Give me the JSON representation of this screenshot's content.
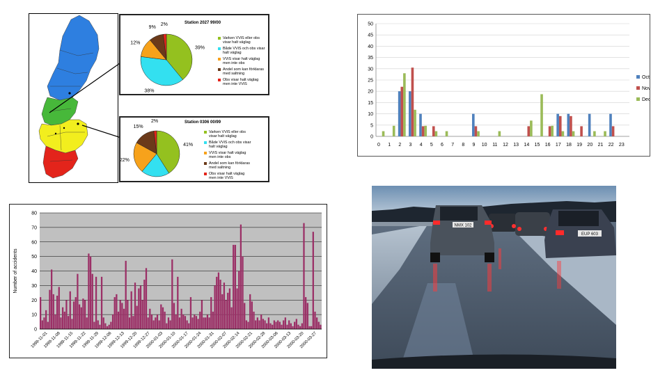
{
  "colors": {
    "sweden_north": "#2e7fe0",
    "sweden_middle": "#47b83a",
    "sweden_south_yellow": "#f2ee1e",
    "sweden_south_red": "#e3241b",
    "pie_green": "#94c11f",
    "pie_cyan": "#33e0f0",
    "pie_orange": "#f7a21b",
    "pie_brown": "#6b3a1a",
    "pie_red": "#e3241b",
    "bar_oct": "#4f81bd",
    "bar_nov": "#c0504d",
    "bar_dec": "#9bbb59",
    "accidents_bar": "#9b2f66",
    "plot_bg_grey": "#c0c0c0"
  },
  "map_panel": {
    "pie1": {
      "title": "Station 2027 99/00",
      "legend": [
        {
          "label": "Varken VViS eller obs visar halt väglag",
          "color_key": "pie_green"
        },
        {
          "label": "Både VViS och obs visar halt väglag",
          "color_key": "pie_cyan"
        },
        {
          "label": "VViS visar halt väglag men inte obs",
          "color_key": "pie_orange"
        },
        {
          "label": "Andel som kan förklaras med saltning",
          "color_key": "pie_brown"
        },
        {
          "label": "Obs visar halt väglag men inte VViS",
          "color_key": "pie_red"
        }
      ],
      "chart_data": {
        "type": "pie",
        "slices": [
          {
            "label": "Varken VViS eller obs visar halt väglag",
            "value": 39,
            "display": "39%",
            "color_key": "pie_green"
          },
          {
            "label": "Både VViS och obs visar halt väglag",
            "value": 38,
            "display": "38%",
            "color_key": "pie_cyan"
          },
          {
            "label": "VViS visar halt väglag men inte obs",
            "value": 12,
            "display": "12%",
            "color_key": "pie_orange"
          },
          {
            "label": "Andel som kan förklaras med saltning",
            "value": 9,
            "display": "9%",
            "color_key": "pie_brown"
          },
          {
            "label": "Obs visar halt väglag men inte VViS",
            "value": 2,
            "display": "2%",
            "color_key": "pie_red"
          }
        ]
      }
    },
    "pie2": {
      "title": "Station 0306 00/99",
      "legend": [
        {
          "label": "Varken VViS eller obs visar halt väglag",
          "color_key": "pie_green"
        },
        {
          "label": "Både VViS och obs visar halt väglag",
          "color_key": "pie_cyan"
        },
        {
          "label": "VViS visar halt väglag men inte obs",
          "color_key": "pie_orange"
        },
        {
          "label": "Andel som kan förklaras med saltning",
          "color_key": "pie_brown"
        },
        {
          "label": "Obs visar halt väglag men inte VViS",
          "color_key": "pie_red"
        }
      ],
      "chart_data": {
        "type": "pie",
        "slices": [
          {
            "label": "Varken VViS eller obs visar halt väglag",
            "value": 41,
            "display": "41%",
            "color_key": "pie_green"
          },
          {
            "label": "Både VViS och obs visar halt väglag",
            "value": 20,
            "display": "20%",
            "color_key": "pie_cyan"
          },
          {
            "label": "VViS visar halt väglag men inte obs",
            "value": 22,
            "display": "22%",
            "color_key": "pie_orange"
          },
          {
            "label": "Andel som kan förklaras med saltning",
            "value": 15,
            "display": "15%",
            "color_key": "pie_brown"
          },
          {
            "label": "Obs visar halt väglag men inte VViS",
            "value": 2,
            "display": "2%",
            "color_key": "pie_red"
          }
        ]
      }
    }
  },
  "hourly_chart": {
    "chart_data": {
      "type": "bar",
      "categories": [
        "0",
        "1",
        "2",
        "3",
        "4",
        "5",
        "6",
        "7",
        "8",
        "9",
        "10",
        "11",
        "12",
        "13",
        "14",
        "15",
        "16",
        "17",
        "18",
        "19",
        "20",
        "21",
        "22",
        "23"
      ],
      "series": [
        {
          "name": "Oct",
          "color_key": "bar_oct",
          "values": [
            0,
            0,
            20,
            20,
            10,
            0,
            0,
            0,
            0,
            10,
            0,
            0,
            0,
            0,
            0,
            0,
            0,
            10,
            10,
            0,
            10,
            0,
            10,
            0
          ]
        },
        {
          "name": "Nov",
          "color_key": "bar_nov",
          "values": [
            0,
            0,
            22,
            30.5,
            4.5,
            4.5,
            0,
            0,
            0,
            4.5,
            0,
            0,
            0,
            0,
            4.5,
            0,
            4.5,
            9,
            9,
            4.5,
            0,
            0,
            4.5,
            0
          ]
        },
        {
          "name": "Dec",
          "color_key": "bar_dec",
          "values": [
            2.3,
            4.7,
            28,
            11.8,
            4.7,
            2.3,
            2.3,
            0,
            0,
            2.3,
            0,
            2.3,
            0,
            0,
            7,
            18.7,
            4.7,
            2.3,
            2.3,
            0,
            2.3,
            2.3,
            0,
            0
          ]
        }
      ],
      "yticks": [
        "0",
        "5",
        "10",
        "15",
        "20",
        "25",
        "30",
        "35",
        "40",
        "45",
        "50"
      ],
      "ylim": [
        0,
        50
      ],
      "grid": true,
      "legend_position": "right"
    }
  },
  "accidents_chart": {
    "chart_data": {
      "type": "bar",
      "ylabel": "Number of accidents",
      "ylim": [
        0,
        80
      ],
      "yticks": [
        "0",
        "10",
        "20",
        "30",
        "40",
        "50",
        "60",
        "70",
        "80"
      ],
      "grid": true,
      "xtick_labels": [
        "1999-11-01",
        "1999-11-08",
        "1999-11-15",
        "1999-11-22",
        "1999-11-29",
        "1999-12-06",
        "1999-12-13",
        "1999-12-20",
        "1999-12-27",
        "2000-01-03",
        "2000-01-10",
        "2000-01-17",
        "2000-01-24",
        "2000-01-31",
        "2000-02-07",
        "2000-02-14",
        "2000-02-21",
        "2000-02-28",
        "2000-03-06",
        "2000-03-13",
        "2000-03-20",
        "2000-03-27"
      ],
      "values": [
        22,
        6,
        8,
        13,
        5,
        27,
        41,
        24,
        10,
        23,
        29,
        8,
        15,
        12,
        20,
        9,
        26,
        7,
        19,
        22,
        38,
        17,
        15,
        21,
        20,
        8,
        52,
        50,
        38,
        5,
        36,
        6,
        3,
        36,
        8,
        4,
        2,
        3,
        5,
        10,
        22,
        24,
        12,
        20,
        18,
        14,
        47,
        20,
        8,
        26,
        9,
        32,
        16,
        28,
        30,
        20,
        34,
        42,
        8,
        14,
        10,
        6,
        8,
        10,
        6,
        17,
        15,
        12,
        4,
        8,
        6,
        48,
        18,
        10,
        36,
        8,
        14,
        10,
        9,
        6,
        4,
        22,
        8,
        10,
        9,
        7,
        12,
        20,
        8,
        8,
        10,
        8,
        22,
        12,
        30,
        36,
        39,
        34,
        24,
        32,
        20,
        25,
        28,
        15,
        58,
        58,
        28,
        40,
        72,
        50,
        18,
        6,
        5,
        24,
        19,
        12,
        6,
        8,
        6,
        10,
        7,
        6,
        4,
        8,
        4,
        3,
        6,
        5,
        6,
        5,
        3,
        6,
        8,
        3,
        6,
        4,
        2,
        5,
        7,
        3,
        2,
        4,
        73,
        22,
        18,
        2,
        2,
        67,
        12,
        8,
        5,
        3
      ]
    }
  },
  "photo": {
    "plate_left": "NMX 102",
    "plate_right": "EUP 603"
  }
}
